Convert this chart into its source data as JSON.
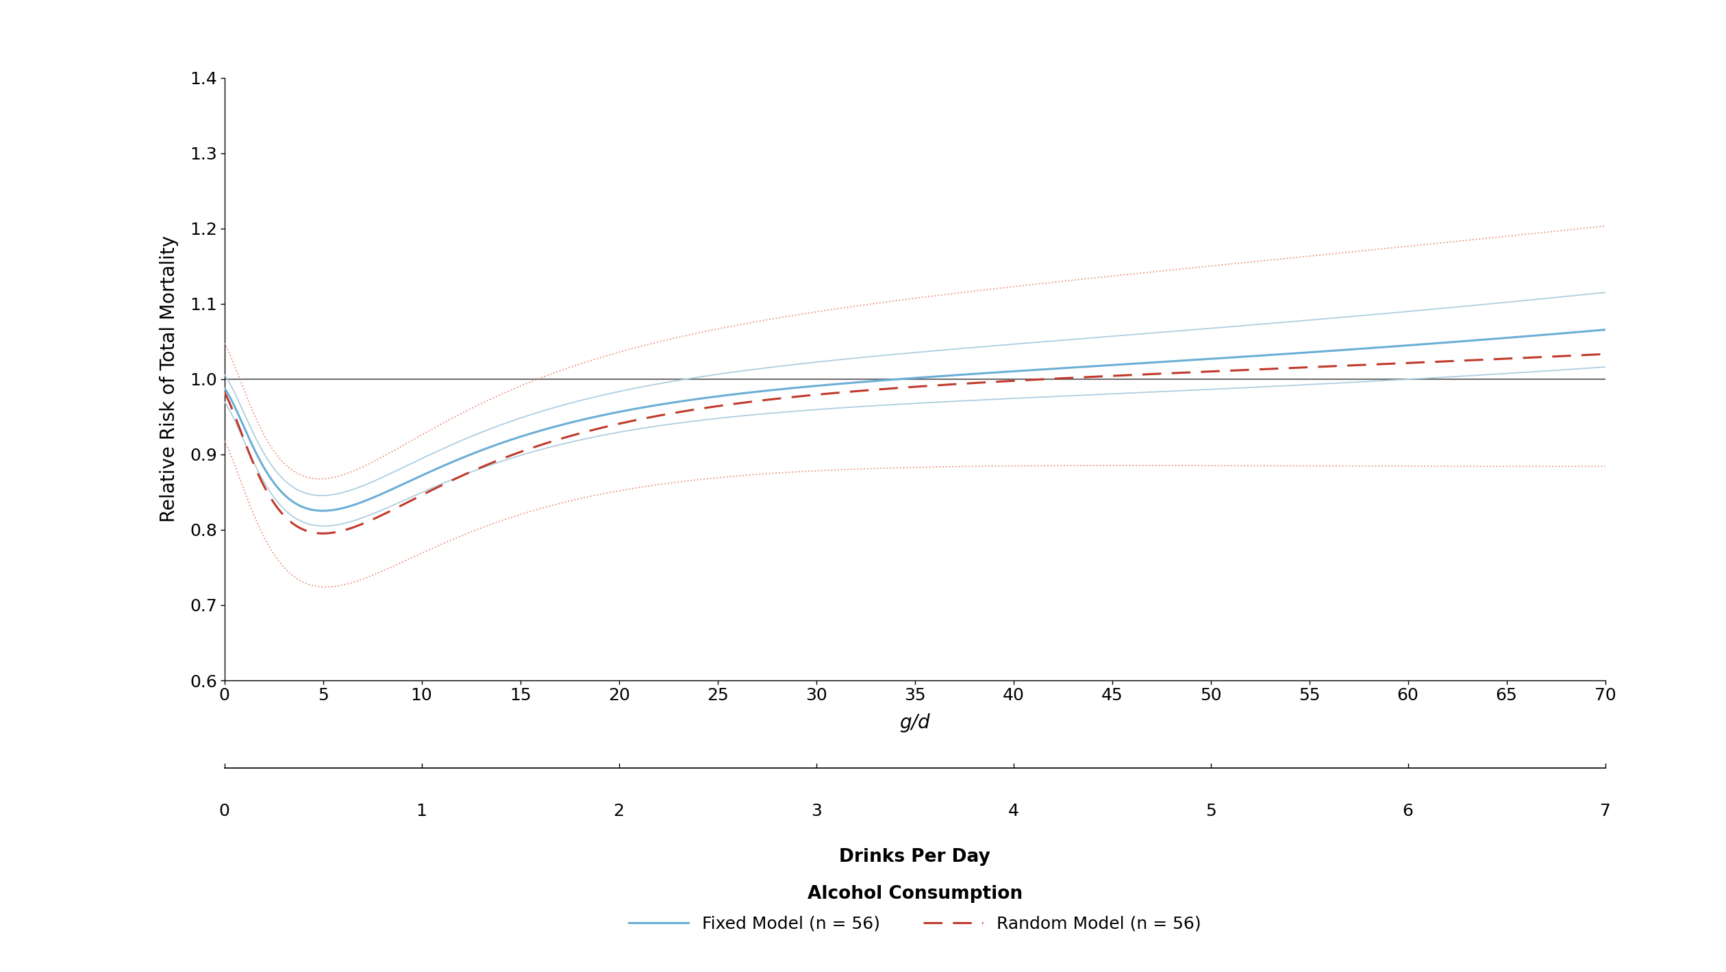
{
  "ylabel": "Relative Risk of Total Mortality",
  "xlabel_top": "g/d",
  "xlabel_bottom": "Drinks Per Day",
  "xlabel_bottom2": "Alcohol Consumption",
  "xlim": [
    0,
    70
  ],
  "ylim": [
    0.6,
    1.4
  ],
  "yticks": [
    0.6,
    0.7,
    0.8,
    0.9,
    1.0,
    1.1,
    1.2,
    1.3,
    1.4
  ],
  "xticks_gd": [
    0,
    5,
    10,
    15,
    20,
    25,
    30,
    35,
    40,
    45,
    50,
    55,
    60,
    65,
    70
  ],
  "xticks_drinks": [
    0,
    1,
    2,
    3,
    4,
    5,
    6,
    7
  ],
  "background_color": "#ffffff",
  "reference_line_y": 1.0,
  "reference_line_color": "#707070",
  "fixed_color": "#6baed6",
  "fixed_ci_color": "#aecde0",
  "random_color": "#c0392b",
  "random_ci_color": "#e8927a",
  "legend_fixed_label": "Fixed Model (n = 56)",
  "legend_random_label": "Random Model (n = 56)"
}
